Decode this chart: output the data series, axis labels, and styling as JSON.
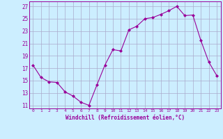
{
  "x": [
    0,
    1,
    2,
    3,
    4,
    5,
    6,
    7,
    8,
    9,
    10,
    11,
    12,
    13,
    14,
    15,
    16,
    17,
    18,
    19,
    20,
    21,
    22,
    23
  ],
  "y": [
    17.5,
    15.5,
    14.8,
    14.7,
    13.2,
    12.5,
    11.5,
    11.0,
    14.3,
    17.5,
    20.0,
    19.8,
    23.2,
    23.8,
    25.0,
    25.2,
    25.7,
    26.3,
    27.0,
    25.5,
    25.6,
    21.5,
    18.0,
    15.8
  ],
  "line_color": "#990099",
  "marker": "D",
  "marker_size": 2.0,
  "background_color": "#cceeff",
  "grid_color": "#aaaacc",
  "xlabel": "Windchill (Refroidissement éolien,°C)",
  "xlabel_color": "#990099",
  "ylabel_ticks": [
    11,
    13,
    15,
    17,
    19,
    21,
    23,
    25,
    27
  ],
  "xtick_labels": [
    "0",
    "1",
    "2",
    "3",
    "4",
    "5",
    "6",
    "7",
    "8",
    "9",
    "10",
    "11",
    "12",
    "13",
    "14",
    "15",
    "16",
    "17",
    "18",
    "19",
    "20",
    "21",
    "22",
    "23"
  ],
  "ylim": [
    10.5,
    27.8
  ],
  "xlim": [
    -0.5,
    23.5
  ]
}
